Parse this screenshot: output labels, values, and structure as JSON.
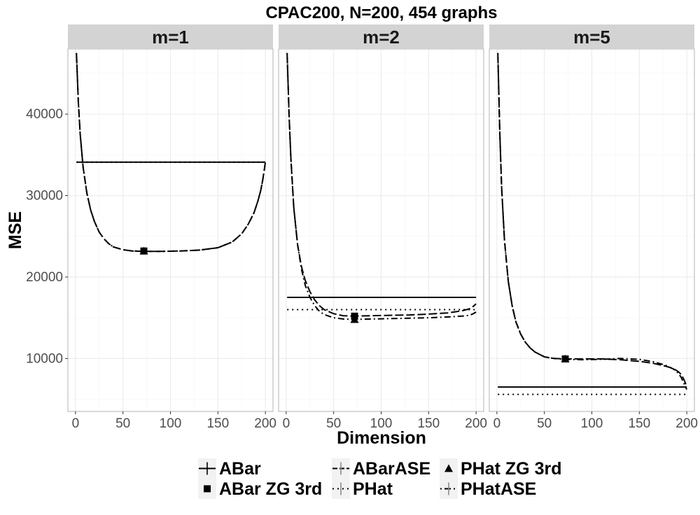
{
  "chart_data": {
    "type": "line",
    "title": "CPAC200, N=200, 454 graphs",
    "xlabel": "Dimension",
    "ylabel": "MSE",
    "xlim": [
      -8,
      208
    ],
    "ylim": [
      3500,
      48000
    ],
    "x_ticks": [
      0,
      50,
      100,
      150,
      200
    ],
    "x_tick_labels": [
      "0",
      "50",
      "100",
      "150",
      "200"
    ],
    "y_ticks": [
      10000,
      20000,
      30000,
      40000
    ],
    "y_tick_labels": [
      "10000",
      "20000",
      "30000",
      "40000"
    ],
    "grid": true,
    "legend_position": "bottom",
    "legend": [
      {
        "label": "ABar",
        "linetype": "solid",
        "shape": "plus"
      },
      {
        "label": "ABarASE",
        "linetype": "longdash",
        "shape": "plus"
      },
      {
        "label": "PHat ZG 3rd",
        "linetype": "none",
        "shape": "triangle"
      },
      {
        "label": "ABar ZG 3rd",
        "linetype": "none",
        "shape": "square"
      },
      {
        "label": "PHat",
        "linetype": "dotted",
        "shape": "plus"
      },
      {
        "label": "PHatASE",
        "linetype": "dotdash",
        "shape": "plus"
      }
    ],
    "panels": [
      {
        "label": "m=1",
        "series": [
          {
            "name": "ABar",
            "linetype": "solid",
            "x": [
              1,
              200
            ],
            "y": [
              34100,
              34100
            ]
          },
          {
            "name": "PHat",
            "linetype": "dotted",
            "x": [
              1,
              200
            ],
            "y": [
              34100,
              34100
            ]
          },
          {
            "name": "ABarASE",
            "linetype": "longdash",
            "x": [
              1,
              3,
              5,
              8,
              12,
              16,
              20,
              25,
              30,
              35,
              40,
              50,
              60,
              72,
              90,
              110,
              130,
              150,
              165,
              175,
              182,
              188,
              192,
              195,
              197,
              199,
              200
            ],
            "y": [
              47500,
              41500,
              37500,
              33500,
              30300,
              28200,
              26800,
              25500,
              24700,
              24100,
              23700,
              23350,
              23200,
              23150,
              23150,
              23200,
              23300,
              23600,
              24300,
              25300,
              26500,
              27900,
              29300,
              30600,
              31800,
              33300,
              34100
            ]
          },
          {
            "name": "PHatASE",
            "linetype": "dotdash",
            "x": [
              1,
              3,
              5,
              8,
              12,
              16,
              20,
              25,
              30,
              35,
              40,
              50,
              60,
              72,
              90,
              110,
              130,
              150,
              165,
              175,
              182,
              188,
              192,
              195,
              197,
              199,
              200
            ],
            "y": [
              47500,
              41500,
              37500,
              33500,
              30300,
              28200,
              26800,
              25500,
              24700,
              24100,
              23700,
              23350,
              23200,
              23150,
              23150,
              23200,
              23300,
              23600,
              24300,
              25300,
              26500,
              27900,
              29300,
              30600,
              31800,
              33300,
              34100
            ]
          }
        ],
        "points": [
          {
            "name": "ABar ZG 3rd",
            "shape": "square",
            "x": 72,
            "y": 23200
          },
          {
            "name": "PHat ZG 3rd",
            "shape": "triangle",
            "x": 72,
            "y": 23200
          }
        ]
      },
      {
        "label": "m=2",
        "series": [
          {
            "name": "ABar",
            "linetype": "solid",
            "x": [
              1,
              200
            ],
            "y": [
              17500,
              17500
            ]
          },
          {
            "name": "PHat",
            "linetype": "dotted",
            "x": [
              1,
              200
            ],
            "y": [
              16000,
              16000
            ]
          },
          {
            "name": "ABarASE",
            "linetype": "longdash",
            "x": [
              1,
              3,
              5,
              8,
              12,
              16,
              20,
              25,
              30,
              35,
              40,
              50,
              60,
              72,
              90,
              110,
              130,
              150,
              170,
              185,
              193,
              197,
              200
            ],
            "y": [
              47500,
              40000,
              34500,
              28500,
              24000,
              21300,
              19600,
              18200,
              17200,
              16500,
              16000,
              15500,
              15250,
              15200,
              15250,
              15300,
              15350,
              15450,
              15600,
              15850,
              16100,
              16400,
              16700
            ]
          },
          {
            "name": "PHatASE",
            "linetype": "dotdash",
            "x": [
              1,
              3,
              5,
              8,
              12,
              16,
              20,
              25,
              30,
              35,
              40,
              50,
              60,
              72,
              90,
              110,
              130,
              150,
              170,
              185,
              193,
              197,
              200
            ],
            "y": [
              47500,
              40000,
              34500,
              28500,
              24000,
              21000,
              19000,
              17500,
              16500,
              15800,
              15400,
              15000,
              14850,
              14800,
              14850,
              14900,
              14950,
              15000,
              15100,
              15200,
              15300,
              15500,
              15700
            ]
          }
        ],
        "points": [
          {
            "name": "ABar ZG 3rd",
            "shape": "square",
            "x": 72,
            "y": 15200
          },
          {
            "name": "PHat ZG 3rd",
            "shape": "triangle",
            "x": 72,
            "y": 14800
          }
        ]
      },
      {
        "label": "m=5",
        "series": [
          {
            "name": "ABar",
            "linetype": "solid",
            "x": [
              1,
              200
            ],
            "y": [
              6500,
              6500
            ]
          },
          {
            "name": "PHat",
            "linetype": "dotted",
            "x": [
              1,
              200
            ],
            "y": [
              5600,
              5600
            ]
          },
          {
            "name": "ABarASE",
            "linetype": "longdash",
            "x": [
              1,
              3,
              5,
              8,
              12,
              16,
              20,
              25,
              30,
              35,
              40,
              50,
              60,
              72,
              90,
              110,
              130,
              150,
              165,
              178,
              186,
              191,
              194,
              196,
              198,
              200
            ],
            "y": [
              47500,
              38000,
              31000,
              24500,
              19500,
              16500,
              14500,
              13000,
              12000,
              11300,
              10800,
              10200,
              10000,
              9950,
              9950,
              9950,
              9850,
              9650,
              9400,
              9050,
              8750,
              8400,
              8050,
              7650,
              7150,
              6500
            ]
          },
          {
            "name": "PHatASE",
            "linetype": "dotdash",
            "x": [
              1,
              3,
              5,
              8,
              12,
              16,
              20,
              25,
              30,
              35,
              40,
              50,
              60,
              72,
              90,
              110,
              130,
              150,
              165,
              178,
              186,
              191,
              194,
              196,
              198,
              200
            ],
            "y": [
              47500,
              38000,
              31000,
              24500,
              19500,
              16500,
              14500,
              13000,
              12000,
              11300,
              10800,
              10200,
              10000,
              9900,
              9850,
              9900,
              10000,
              9900,
              9600,
              9150,
              8700,
              8200,
              7700,
              7200,
              6700,
              6200
            ]
          }
        ],
        "points": [
          {
            "name": "ABar ZG 3rd",
            "shape": "square",
            "x": 72,
            "y": 9950
          },
          {
            "name": "PHat ZG 3rd",
            "shape": "triangle",
            "x": 72,
            "y": 9950
          }
        ]
      }
    ]
  }
}
